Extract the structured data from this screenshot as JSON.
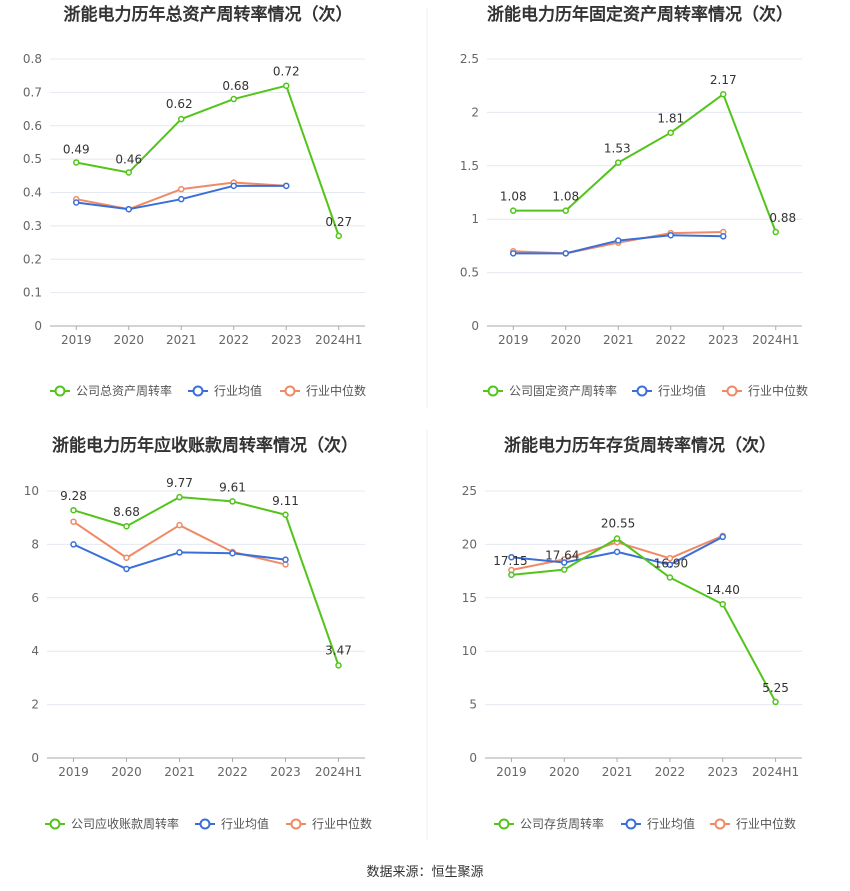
{
  "source_text": "数据来源：恒生聚源",
  "colors": {
    "company": "#52c41a",
    "avg": "#3a6fd8",
    "median": "#f08a65",
    "grid": "#e4e8f0",
    "axis": "#aaaaaa"
  },
  "chart_data": [
    {
      "type": "line",
      "title": "浙能电力历年总资产周转率情况（次）",
      "categories": [
        "2019",
        "2020",
        "2021",
        "2022",
        "2023",
        "2024H1"
      ],
      "ylim": [
        0,
        0.8
      ],
      "yticks": [
        "0",
        "0.1",
        "0.2",
        "0.3",
        "0.4",
        "0.5",
        "0.6",
        "0.7",
        "0.8"
      ],
      "series": [
        {
          "name": "公司总资产周转率",
          "values": [
            0.49,
            0.46,
            0.62,
            0.68,
            0.72,
            0.27
          ],
          "labels": [
            "0.49",
            "0.46",
            "0.62",
            "0.68",
            "0.72",
            "0.27"
          ]
        },
        {
          "name": "行业均值",
          "values": [
            0.37,
            0.35,
            0.38,
            0.42,
            0.42,
            null
          ]
        },
        {
          "name": "行业中位数",
          "values": [
            0.38,
            0.35,
            0.41,
            0.43,
            0.42,
            null
          ]
        }
      ]
    },
    {
      "type": "line",
      "title": "浙能电力历年固定资产周转率情况（次）",
      "categories": [
        "2019",
        "2020",
        "2021",
        "2022",
        "2023",
        "2024H1"
      ],
      "ylim": [
        0,
        2.5
      ],
      "yticks": [
        "0",
        "0.5",
        "1",
        "1.5",
        "2",
        "2.5"
      ],
      "series": [
        {
          "name": "公司固定资产周转率",
          "values": [
            1.08,
            1.08,
            1.53,
            1.81,
            2.17,
            0.88
          ],
          "labels": [
            "1.08",
            "1.08",
            "1.53",
            "1.81",
            "2.17",
            "0.88"
          ]
        },
        {
          "name": "行业均值",
          "values": [
            0.68,
            0.68,
            0.8,
            0.85,
            0.84,
            null
          ]
        },
        {
          "name": "行业中位数",
          "values": [
            0.7,
            0.68,
            0.78,
            0.87,
            0.88,
            null
          ]
        }
      ]
    },
    {
      "type": "line",
      "title": "浙能电力历年应收账款周转率情况（次）",
      "categories": [
        "2019",
        "2020",
        "2021",
        "2022",
        "2023",
        "2024H1"
      ],
      "ylim": [
        0,
        10
      ],
      "yticks": [
        "0",
        "2",
        "4",
        "6",
        "8",
        "10"
      ],
      "series": [
        {
          "name": "公司应收账款周转率",
          "values": [
            9.28,
            8.68,
            9.77,
            9.61,
            9.11,
            3.47
          ],
          "labels": [
            "9.28",
            "8.68",
            "9.77",
            "9.61",
            "9.11",
            "3.47"
          ]
        },
        {
          "name": "行业均值",
          "values": [
            8.0,
            7.08,
            7.7,
            7.67,
            7.43,
            null
          ]
        },
        {
          "name": "行业中位数",
          "values": [
            8.85,
            7.5,
            8.72,
            7.72,
            7.25,
            null
          ]
        }
      ]
    },
    {
      "type": "line",
      "title": "浙能电力历年存货周转率情况（次）",
      "categories": [
        "2019",
        "2020",
        "2021",
        "2022",
        "2023",
        "2024H1"
      ],
      "ylim": [
        0,
        25
      ],
      "yticks": [
        "0",
        "5",
        "10",
        "15",
        "20",
        "25"
      ],
      "series": [
        {
          "name": "公司存货周转率",
          "values": [
            17.15,
            17.64,
            20.55,
            16.9,
            14.4,
            5.25
          ],
          "labels": [
            "17.15",
            "17.64",
            "20.55",
            "16.90",
            "14.40",
            "5.25"
          ]
        },
        {
          "name": "行业均值",
          "values": [
            18.8,
            18.3,
            19.3,
            18.1,
            20.7,
            null
          ]
        },
        {
          "name": "行业中位数",
          "values": [
            17.6,
            18.6,
            20.2,
            18.7,
            20.8,
            null
          ]
        }
      ]
    }
  ]
}
